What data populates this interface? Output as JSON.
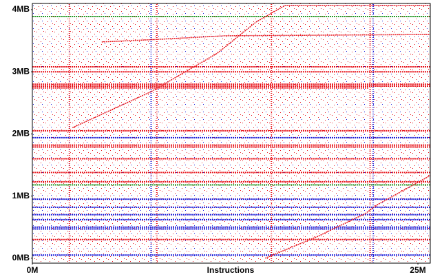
{
  "chart_data": {
    "type": "scatter",
    "xlabel": "Instructions",
    "xlim": [
      0,
      25.8
    ],
    "ylim": [
      -0.08,
      4.1
    ],
    "xticks": [
      {
        "value": 0,
        "label": "0M"
      },
      {
        "value": 25,
        "label": "25M"
      }
    ],
    "yticks": [
      {
        "value": 0,
        "label": "0MB"
      },
      {
        "value": 1,
        "label": "1MB"
      },
      {
        "value": 2,
        "label": "2MB"
      },
      {
        "value": 3,
        "label": "3MB"
      },
      {
        "value": 4,
        "label": "4MB"
      }
    ],
    "bands": [
      {
        "y": 3.89,
        "x": [
          0,
          25.8
        ],
        "color": "#2a9a2a"
      },
      {
        "y": 3.08,
        "x": [
          0,
          25.8
        ],
        "color": "#e8141c"
      },
      {
        "y": 3.0,
        "x": [
          0,
          25.8
        ],
        "color": "#e8141c"
      },
      {
        "y": 2.8,
        "x": [
          0,
          25.8
        ],
        "color": "#e8141c"
      },
      {
        "y": 2.77,
        "x": [
          0,
          25.8
        ],
        "color": "#e8141c"
      },
      {
        "y": 2.74,
        "x": [
          0,
          21.8
        ],
        "color": "#e8141c"
      },
      {
        "y": 2.05,
        "x": [
          0,
          25.8
        ],
        "color": "#e8141c"
      },
      {
        "y": 1.94,
        "x": [
          0,
          25.8
        ],
        "color": "#1c1cd8"
      },
      {
        "y": 1.82,
        "x": [
          0,
          25.8
        ],
        "color": "#e8141c"
      },
      {
        "y": 1.79,
        "x": [
          0,
          25.8
        ],
        "color": "#e8141c"
      },
      {
        "y": 1.6,
        "x": [
          0,
          25.8
        ],
        "color": "#e8141c"
      },
      {
        "y": 1.38,
        "x": [
          0,
          25.8
        ],
        "color": "#e8141c"
      },
      {
        "y": 1.23,
        "x": [
          0,
          25.8
        ],
        "color": "#e8141c"
      },
      {
        "y": 1.18,
        "x": [
          0,
          25.8
        ],
        "color": "#2a9a2a"
      },
      {
        "y": 0.95,
        "x": [
          0,
          25.8
        ],
        "color": "#1c1cd8"
      },
      {
        "y": 0.82,
        "x": [
          0,
          25.8
        ],
        "color": "#1c1cd8"
      },
      {
        "y": 0.7,
        "x": [
          0,
          25.8
        ],
        "color": "#1c1cd8"
      },
      {
        "y": 0.62,
        "x": [
          0,
          25.8
        ],
        "color": "#1c1cd8"
      },
      {
        "y": 0.5,
        "x": [
          0,
          25.8
        ],
        "color": "#1c1cd8"
      },
      {
        "y": 0.47,
        "x": [
          0,
          25.8
        ],
        "color": "#1c1cd8"
      },
      {
        "y": 0.3,
        "x": [
          0,
          25.8
        ],
        "color": "#e8141c"
      },
      {
        "y": 0.05,
        "x": [
          0,
          25.8
        ],
        "color": "#1c1cd8"
      }
    ],
    "columns": [
      {
        "x": 2.4,
        "y": [
          -0.08,
          4.1
        ],
        "color": "#e8141c"
      },
      {
        "x": 7.7,
        "y": [
          -0.08,
          4.1
        ],
        "color": "#1c1cd8"
      },
      {
        "x": 8.07,
        "y": [
          -0.08,
          4.1
        ],
        "color": "#e8141c"
      },
      {
        "x": 15.5,
        "y": [
          -0.08,
          4.1
        ],
        "color": "#e8141c"
      },
      {
        "x": 21.9,
        "y": [
          -0.08,
          4.1
        ],
        "color": "#e8141c"
      },
      {
        "x": 22.1,
        "y": [
          -0.08,
          4.1
        ],
        "color": "#1c1cd8"
      }
    ],
    "series": [
      {
        "color": "#e8141c",
        "x": [
          2.6,
          7.7,
          12.0,
          14.5,
          16.4,
          25.8
        ],
        "y": [
          2.1,
          2.68,
          3.3,
          3.8,
          4.07,
          4.07
        ]
      },
      {
        "color": "#e8141c",
        "x": [
          15.1,
          18.5,
          21.6,
          22.3,
          25.8
        ],
        "y": [
          0.0,
          0.35,
          0.72,
          0.85,
          1.33
        ]
      },
      {
        "color": "#e8141c",
        "x": [
          4.5,
          8.0,
          12.5,
          25.8
        ],
        "y": [
          3.48,
          3.52,
          3.58,
          3.6
        ]
      }
    ]
  }
}
